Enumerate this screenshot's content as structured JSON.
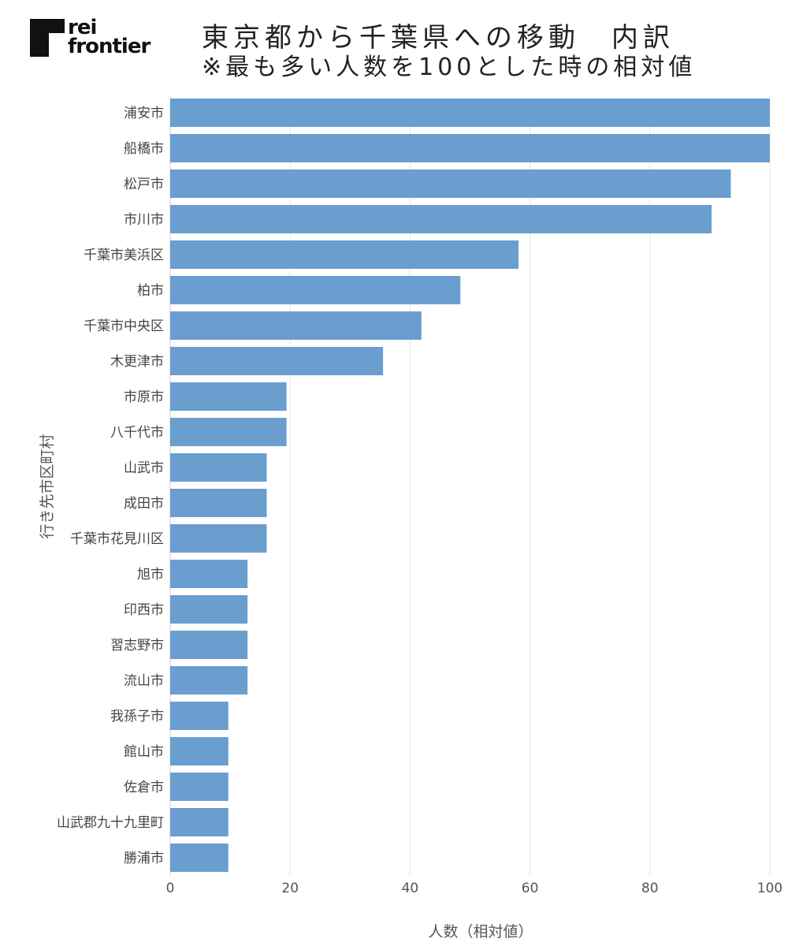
{
  "logo": {
    "line1": "rei",
    "line2": "frontier"
  },
  "title": {
    "line1": "東京都から千葉県への移動　内訳",
    "line2": "※最も多い人数を100とした時の相対値"
  },
  "colors": {
    "bar": "#6a9ecf",
    "grid": "#e6e6e6",
    "axis": "#cccccc"
  },
  "chart_data": {
    "type": "bar",
    "orientation": "horizontal",
    "xlabel": "人数（相対値）",
    "ylabel": "行き先市区町村",
    "xlim": [
      0,
      100
    ],
    "xticks": [
      0,
      20,
      40,
      60,
      80,
      100
    ],
    "grid": true,
    "categories": [
      "浦安市",
      "船橋市",
      "松戸市",
      "市川市",
      "千葉市美浜区",
      "柏市",
      "千葉市中央区",
      "木更津市",
      "市原市",
      "八千代市",
      "山武市",
      "成田市",
      "千葉市花見川区",
      "旭市",
      "印西市",
      "習志野市",
      "流山市",
      "我孫子市",
      "館山市",
      "佐倉市",
      "山武郡九十九里町",
      "勝浦市"
    ],
    "values": [
      100,
      100,
      93.5,
      90.3,
      58.1,
      48.4,
      41.9,
      35.5,
      19.4,
      19.4,
      16.1,
      16.1,
      16.1,
      12.9,
      12.9,
      12.9,
      12.9,
      9.7,
      9.7,
      9.7,
      9.7,
      9.7
    ]
  }
}
